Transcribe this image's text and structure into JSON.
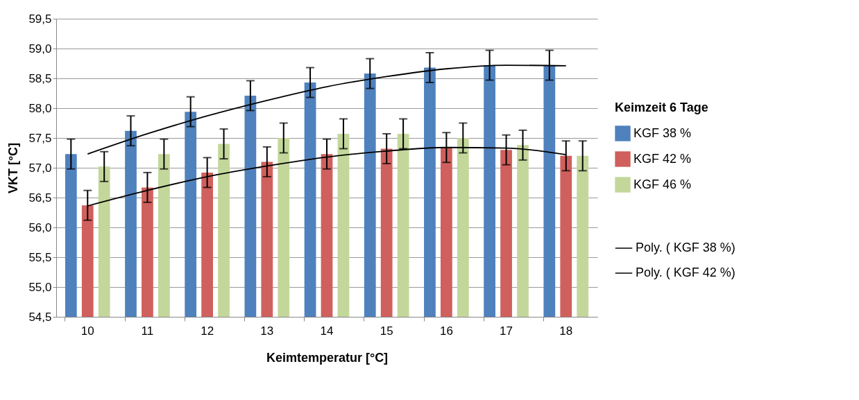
{
  "chart_data": {
    "type": "bar",
    "xlabel": "Keimtemperatur [°C]",
    "ylabel": "VKT [°C]",
    "legend_title": "Keimzeit 6 Tage",
    "categories": [
      "10",
      "11",
      "12",
      "13",
      "14",
      "15",
      "16",
      "17",
      "18"
    ],
    "series": [
      {
        "name": "KGF 38 %",
        "color": "#4f81bd",
        "values": [
          57.23,
          57.62,
          57.94,
          58.21,
          58.43,
          58.58,
          58.68,
          58.72,
          58.72
        ],
        "errors": [
          0.25,
          0.25,
          0.25,
          0.25,
          0.25,
          0.25,
          0.25,
          0.25,
          0.25
        ]
      },
      {
        "name": "KGF 42 %",
        "color": "#d0605d",
        "values": [
          56.37,
          56.67,
          56.92,
          57.1,
          57.23,
          57.32,
          57.34,
          57.3,
          57.2
        ],
        "errors": [
          0.25,
          0.25,
          0.25,
          0.25,
          0.25,
          0.25,
          0.25,
          0.25,
          0.25
        ]
      },
      {
        "name": "KGF 46 %",
        "color": "#c4d79b",
        "values": [
          57.02,
          57.23,
          57.4,
          57.5,
          57.57,
          57.57,
          57.5,
          57.38,
          57.2
        ],
        "errors": [
          0.25,
          0.25,
          0.25,
          0.25,
          0.25,
          0.25,
          0.25,
          0.25,
          0.25
        ]
      },
      {
        "name": "Poly. ( KGF 38 %)",
        "type": "line",
        "color": "#000000",
        "values": [
          57.23,
          57.57,
          57.87,
          58.13,
          58.36,
          58.53,
          58.66,
          58.72,
          58.71
        ]
      },
      {
        "name": "Poly. ( KGF 42 %)",
        "type": "line",
        "color": "#000000",
        "values": [
          56.36,
          56.62,
          56.85,
          57.03,
          57.18,
          57.28,
          57.34,
          57.33,
          57.22
        ]
      }
    ],
    "ylim": [
      54.5,
      59.5
    ],
    "yticks": [
      {
        "value": 54.5,
        "label": "54,5"
      },
      {
        "value": 55.0,
        "label": "55,0"
      },
      {
        "value": 55.5,
        "label": "55,5"
      },
      {
        "value": 56.0,
        "label": "56,0"
      },
      {
        "value": 56.5,
        "label": "56,5"
      },
      {
        "value": 57.0,
        "label": "57,0"
      },
      {
        "value": 57.5,
        "label": "57,5"
      },
      {
        "value": 58.0,
        "label": "58,0"
      },
      {
        "value": 58.5,
        "label": "58,5"
      },
      {
        "value": 59.0,
        "label": "59,0"
      },
      {
        "value": 59.5,
        "label": "59,5"
      }
    ],
    "grid": "y",
    "legend": "right"
  }
}
